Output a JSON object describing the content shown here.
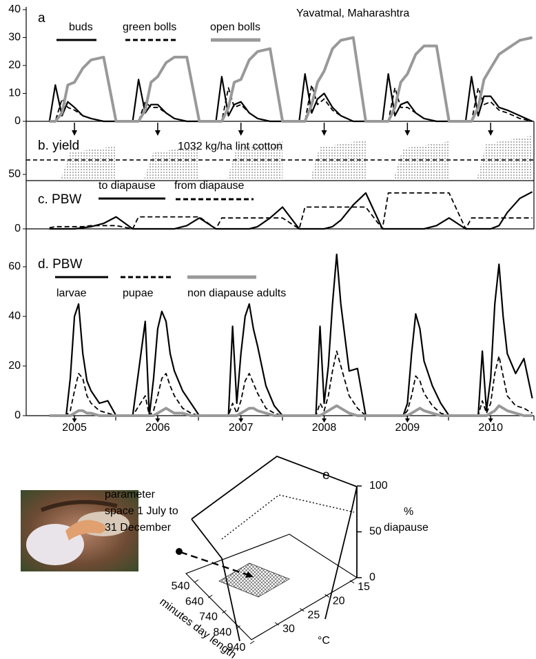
{
  "chart_data": [
    {
      "type": "line",
      "title": "a",
      "subtitle": "Yavatmal, Maharashtra",
      "xlim": [
        2004.42,
        2010.52
      ],
      "ylim": [
        0,
        40
      ],
      "yticks": [
        0,
        10,
        20,
        30,
        40
      ],
      "x": [
        2004.7,
        2004.77,
        2004.85,
        2004.92,
        2005,
        2005.1,
        2005.2,
        2005.35,
        2005.5,
        2005.7,
        2005.77,
        2005.85,
        2005.92,
        2006,
        2006.1,
        2006.2,
        2006.35,
        2006.5,
        2006.7,
        2006.77,
        2006.85,
        2006.92,
        2007,
        2007.1,
        2007.2,
        2007.35,
        2007.5,
        2007.7,
        2007.77,
        2007.85,
        2007.92,
        2008,
        2008.1,
        2008.2,
        2008.35,
        2008.5,
        2008.7,
        2008.77,
        2008.85,
        2008.92,
        2009,
        2009.1,
        2009.2,
        2009.35,
        2009.5,
        2009.7,
        2009.77,
        2009.85,
        2009.92,
        2010,
        2010.1,
        2010.2,
        2010.35,
        2010.5
      ],
      "series": [
        {
          "name": "buds",
          "color": "#000000",
          "line_style": "solid",
          "values": [
            0,
            13,
            2,
            7,
            5,
            2,
            1,
            0,
            0,
            0,
            15,
            3,
            6,
            6,
            3,
            1,
            0,
            0,
            0,
            16,
            2,
            6,
            7,
            3,
            1,
            0,
            0,
            0,
            17,
            3,
            8,
            10,
            5,
            2,
            0,
            0,
            0,
            17,
            2,
            6,
            7,
            3,
            1,
            0,
            0,
            0,
            16,
            2,
            9,
            9,
            5,
            4,
            2,
            0
          ]
        },
        {
          "name": "green bolls",
          "color": "#000000",
          "line_style": "dashed",
          "values": [
            0,
            0,
            8,
            5,
            4,
            2,
            1,
            0,
            0,
            0,
            0,
            7,
            5,
            5,
            3,
            1,
            0,
            0,
            0,
            0,
            12,
            5,
            6,
            3,
            1,
            0,
            0,
            0,
            0,
            13,
            6,
            8,
            4,
            2,
            0,
            0,
            0,
            0,
            12,
            5,
            5,
            3,
            1,
            0,
            0,
            0,
            0,
            12,
            6,
            7,
            4,
            3,
            1,
            0
          ]
        },
        {
          "name": "open bolls",
          "color": "#999999",
          "line_style": "thick",
          "values": [
            0,
            0,
            3,
            13,
            14,
            19,
            22,
            23,
            0,
            0,
            0,
            4,
            14,
            16,
            21,
            23,
            23,
            0,
            0,
            0,
            5,
            14,
            15,
            22,
            25,
            26,
            0,
            0,
            0,
            6,
            14,
            18,
            26,
            29,
            30,
            0,
            0,
            0,
            5,
            14,
            17,
            24,
            27,
            27,
            0,
            0,
            0,
            5,
            15,
            19,
            24,
            26,
            29,
            30
          ]
        }
      ]
    },
    {
      "type": "area",
      "title": "b. yield",
      "color": "#555555",
      "xlim": [
        2004.42,
        2010.52
      ],
      "x_start": [
        2004.83,
        2005.83,
        2006.83,
        2007.83,
        2008.83,
        2009.83
      ],
      "x_end": [
        2005.5,
        2006.5,
        2007.5,
        2008.5,
        2009.5,
        2010.5
      ],
      "values": [
        1720,
        1720,
        1960,
        2030,
        1960,
        2240
      ],
      "reference_value": 1032,
      "reference_label": "1032 kg/ha lint cotton"
    },
    {
      "type": "line",
      "title": "c.  PBW",
      "xlim": [
        2004.42,
        2010.52
      ],
      "ylim": [
        0,
        50
      ],
      "yticks": [
        0,
        50
      ],
      "x": [
        2004.7,
        2004.77,
        2004.85,
        2004.92,
        2005,
        2005.1,
        2005.2,
        2005.35,
        2005.5,
        2005.7,
        2005.77,
        2005.85,
        2005.92,
        2006,
        2006.1,
        2006.2,
        2006.35,
        2006.5,
        2006.7,
        2006.77,
        2006.85,
        2006.92,
        2007,
        2007.1,
        2007.2,
        2007.35,
        2007.5,
        2007.7,
        2007.77,
        2007.85,
        2007.92,
        2008,
        2008.1,
        2008.2,
        2008.35,
        2008.5,
        2008.7,
        2008.77,
        2008.85,
        2008.92,
        2009,
        2009.1,
        2009.2,
        2009.35,
        2009.5,
        2009.7,
        2009.77,
        2009.85,
        2009.92,
        2010,
        2010.1,
        2010.2,
        2010.35,
        2010.5
      ],
      "series": [
        {
          "name": "to diapause",
          "color": "#000000",
          "line_style": "solid",
          "values": [
            0,
            0,
            0,
            0,
            0,
            1,
            2,
            5,
            11,
            0,
            0,
            0,
            0,
            0,
            0,
            0,
            3,
            10,
            0,
            0,
            0,
            0,
            0,
            0,
            2,
            10,
            20,
            0,
            0,
            0,
            0,
            0,
            2,
            8,
            22,
            33,
            0,
            0,
            0,
            0,
            0,
            0,
            0,
            3,
            10,
            0,
            0,
            0,
            0,
            0,
            3,
            15,
            28,
            34
          ]
        },
        {
          "name": "from diapause",
          "color": "#000000",
          "line_style": "dashed",
          "values": [
            1,
            2,
            2,
            2,
            2,
            2,
            3,
            3,
            3,
            0,
            11,
            11,
            11,
            11,
            11,
            11,
            11,
            11,
            0,
            10,
            10,
            10,
            10,
            10,
            10,
            10,
            10,
            0,
            20,
            20,
            20,
            20,
            20,
            20,
            20,
            20,
            0,
            33,
            33,
            33,
            33,
            33,
            33,
            33,
            33,
            0,
            10,
            10,
            10,
            10,
            10,
            10,
            10,
            10
          ]
        }
      ]
    },
    {
      "type": "line",
      "title": "d.  PBW",
      "xlim": [
        2004.42,
        2010.52
      ],
      "ylim": [
        0,
        70
      ],
      "yticks": [
        0,
        20,
        40,
        60
      ],
      "xticks": [
        2005,
        2006,
        2007,
        2008,
        2009,
        2010
      ],
      "x": [
        2004.7,
        2004.85,
        2004.9,
        2004.95,
        2005,
        2005.05,
        2005.1,
        2005.15,
        2005.2,
        2005.3,
        2005.4,
        2005.5,
        2005.7,
        2005.85,
        2005.9,
        2005.95,
        2006,
        2006.05,
        2006.1,
        2006.15,
        2006.2,
        2006.3,
        2006.4,
        2006.5,
        2006.7,
        2006.85,
        2006.9,
        2006.95,
        2007,
        2007.05,
        2007.1,
        2007.15,
        2007.2,
        2007.3,
        2007.4,
        2007.5,
        2007.7,
        2007.85,
        2007.9,
        2007.95,
        2008,
        2008.05,
        2008.1,
        2008.15,
        2008.2,
        2008.3,
        2008.4,
        2008.5,
        2008.7,
        2008.85,
        2008.9,
        2008.95,
        2009,
        2009.05,
        2009.1,
        2009.15,
        2009.2,
        2009.3,
        2009.4,
        2009.5,
        2009.7,
        2009.85,
        2009.9,
        2009.95,
        2010,
        2010.05,
        2010.1,
        2010.15,
        2010.2,
        2010.3,
        2010.4,
        2010.5
      ],
      "series": [
        {
          "name": "larvae",
          "color": "#000000",
          "line_style": "solid",
          "values": [
            0,
            0,
            0,
            15,
            40,
            45,
            25,
            14,
            10,
            5,
            6,
            0,
            0,
            38,
            0,
            15,
            35,
            42,
            38,
            25,
            18,
            10,
            5,
            0,
            0,
            0,
            36,
            5,
            25,
            40,
            45,
            35,
            28,
            12,
            4,
            0,
            0,
            0,
            0,
            36,
            5,
            20,
            45,
            65,
            45,
            18,
            19,
            0,
            0,
            0,
            0,
            0,
            5,
            25,
            41,
            35,
            22,
            12,
            5,
            0,
            0,
            0,
            26,
            2,
            15,
            45,
            61,
            40,
            25,
            17,
            23,
            7
          ]
        },
        {
          "name": "pupae",
          "color": "#000000",
          "line_style": "dashed",
          "values": [
            0,
            0,
            0,
            2,
            10,
            17,
            15,
            8,
            5,
            2,
            1,
            0,
            0,
            8,
            0,
            2,
            8,
            15,
            17,
            12,
            8,
            3,
            1,
            0,
            0,
            0,
            5,
            1,
            6,
            14,
            17,
            13,
            9,
            3,
            1,
            0,
            0,
            0,
            0,
            5,
            2,
            8,
            18,
            26,
            20,
            8,
            3,
            0,
            0,
            0,
            0,
            0,
            2,
            8,
            16,
            14,
            9,
            4,
            1,
            0,
            0,
            0,
            6,
            1,
            5,
            17,
            24,
            16,
            8,
            4,
            3,
            1
          ]
        },
        {
          "name": "non diapause adults",
          "color": "#999999",
          "line_style": "thick",
          "values": [
            0,
            0,
            0,
            0,
            1,
            2,
            2,
            1,
            1,
            0,
            0,
            0,
            0,
            0,
            0,
            0,
            1,
            2,
            3,
            2,
            1,
            1,
            0,
            0,
            0,
            0,
            0,
            0,
            1,
            2,
            3,
            3,
            2,
            1,
            0,
            0,
            0,
            0,
            0,
            0,
            1,
            2,
            3,
            4,
            3,
            1,
            0,
            0,
            0,
            0,
            0,
            0,
            0,
            1,
            2,
            3,
            2,
            1,
            0,
            0,
            0,
            0,
            0,
            0,
            1,
            2,
            4,
            3,
            2,
            1,
            0,
            0
          ]
        }
      ]
    },
    {
      "type": "surface3d",
      "title": "e",
      "annotation": [
        "parameter",
        "space 1 July to",
        "31 December"
      ],
      "xlabel": "minutes day length",
      "xlim": [
        540,
        940
      ],
      "xticks": [
        540,
        640,
        740,
        840,
        940
      ],
      "ylabel": "°C",
      "ylim": [
        15,
        30
      ],
      "yticks": [
        15,
        20,
        25,
        30
      ],
      "zlabel": [
        "%",
        "diapause"
      ],
      "zlim": [
        0,
        100
      ],
      "zticks": [
        0,
        50,
        100
      ]
    }
  ]
}
